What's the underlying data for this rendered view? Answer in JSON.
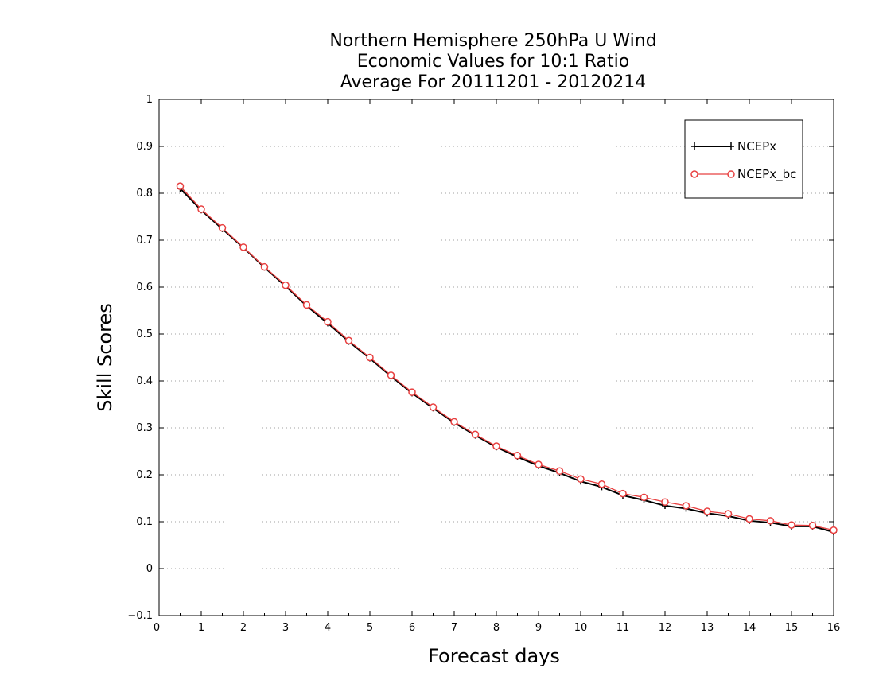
{
  "chart_data": {
    "type": "line",
    "title": [
      "Northern Hemisphere 250hPa U Wind",
      "Economic Values for 10:1 Ratio",
      "Average For 20111201 - 20120214"
    ],
    "xlabel": "Forecast days",
    "ylabel": "Skill Scores",
    "xlim": [
      0,
      16
    ],
    "ylim": [
      -0.1,
      1
    ],
    "xticks": [
      0,
      1,
      2,
      3,
      4,
      5,
      6,
      7,
      8,
      9,
      10,
      11,
      12,
      13,
      14,
      15,
      16
    ],
    "xtick_labels": [
      "0",
      "1",
      "2",
      "3",
      "4",
      "5",
      "6",
      "7",
      "8",
      "9",
      "10",
      "11",
      "12",
      "13",
      "14",
      "15",
      "16"
    ],
    "yticks": [
      -0.1,
      0,
      0.1,
      0.2,
      0.3,
      0.4,
      0.5,
      0.6,
      0.7,
      0.8,
      0.9,
      1
    ],
    "ytick_labels": [
      "−0.1",
      "0",
      "0.1",
      "0.2",
      "0.3",
      "0.4",
      "0.5",
      "0.6",
      "0.7",
      "0.8",
      "0.9",
      "1"
    ],
    "grid": "horizontal dotted",
    "legend_position": "top-right",
    "x": [
      0.5,
      1,
      1.5,
      2,
      2.5,
      3,
      3.5,
      4,
      4.5,
      5,
      5.5,
      6,
      6.5,
      7,
      7.5,
      8,
      8.5,
      9,
      9.5,
      10,
      10.5,
      11,
      11.5,
      12,
      12.5,
      13,
      13.5,
      14,
      14.5,
      15,
      15.5,
      16
    ],
    "series": [
      {
        "name": "NCEPx",
        "color": "#000000",
        "marker": "plus",
        "values": [
          0.81,
          0.764,
          0.724,
          0.684,
          0.642,
          0.602,
          0.56,
          0.523,
          0.484,
          0.448,
          0.41,
          0.374,
          0.342,
          0.311,
          0.284,
          0.259,
          0.238,
          0.219,
          0.204,
          0.186,
          0.174,
          0.156,
          0.146,
          0.134,
          0.128,
          0.118,
          0.112,
          0.102,
          0.098,
          0.09,
          0.09,
          0.078
        ]
      },
      {
        "name": "NCEPx_bc",
        "color": "#e84040",
        "marker": "circle",
        "values": [
          0.815,
          0.766,
          0.726,
          0.685,
          0.643,
          0.604,
          0.562,
          0.526,
          0.486,
          0.45,
          0.412,
          0.376,
          0.344,
          0.313,
          0.286,
          0.261,
          0.241,
          0.222,
          0.208,
          0.191,
          0.18,
          0.16,
          0.152,
          0.142,
          0.134,
          0.122,
          0.117,
          0.106,
          0.102,
          0.093,
          0.092,
          0.082
        ]
      }
    ]
  }
}
